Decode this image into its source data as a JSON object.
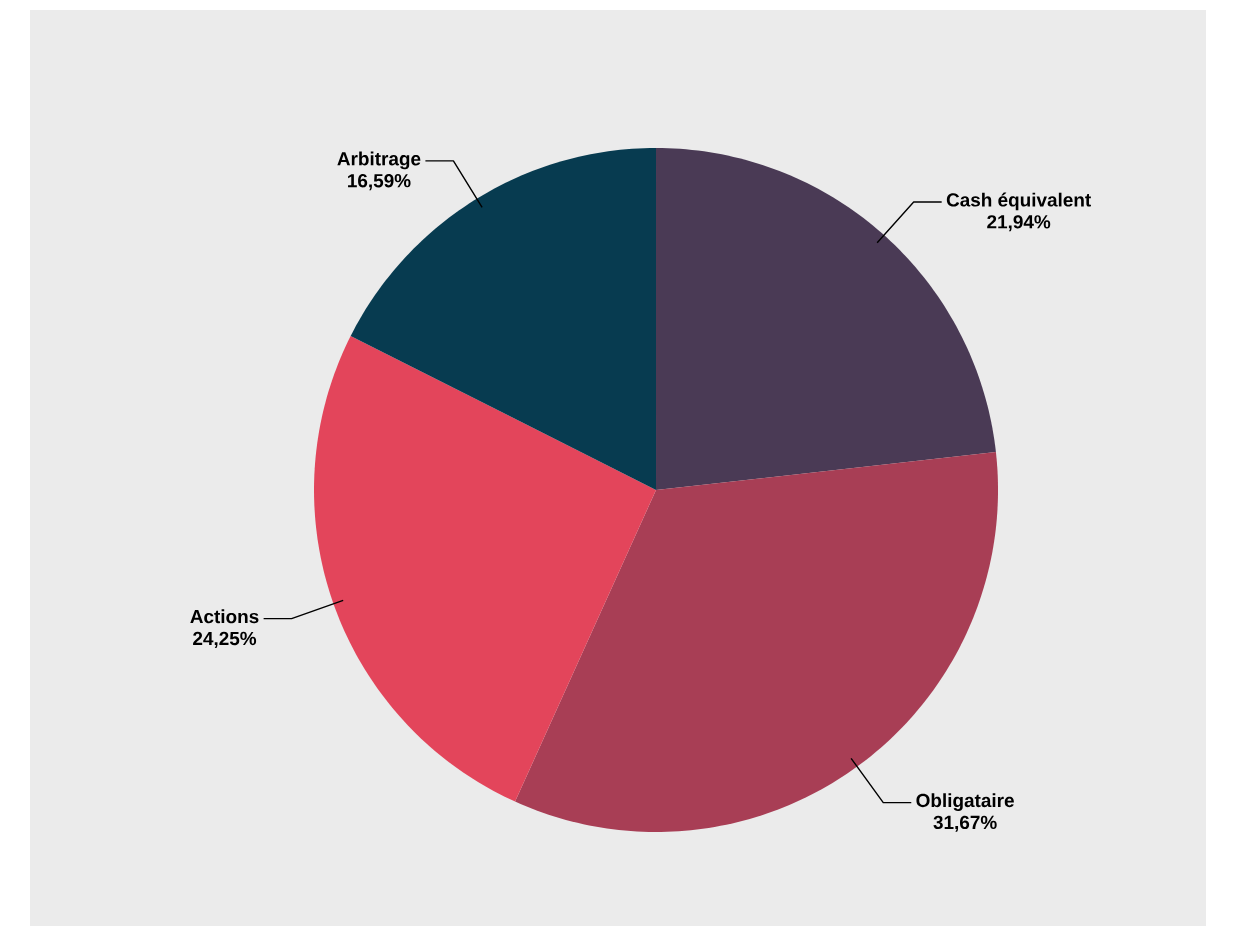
{
  "chart_data": {
    "type": "pie",
    "categories": [
      "Cash équivalent",
      "Obligataire",
      "Actions",
      "Arbitrage"
    ],
    "values": [
      21.94,
      31.67,
      24.25,
      16.59
    ],
    "value_labels": [
      "21,94%",
      "31,67%",
      "24,25%",
      "16,59%"
    ],
    "colors": [
      "#4a3a55",
      "#a83e55",
      "#e3455b",
      "#073b50"
    ]
  }
}
